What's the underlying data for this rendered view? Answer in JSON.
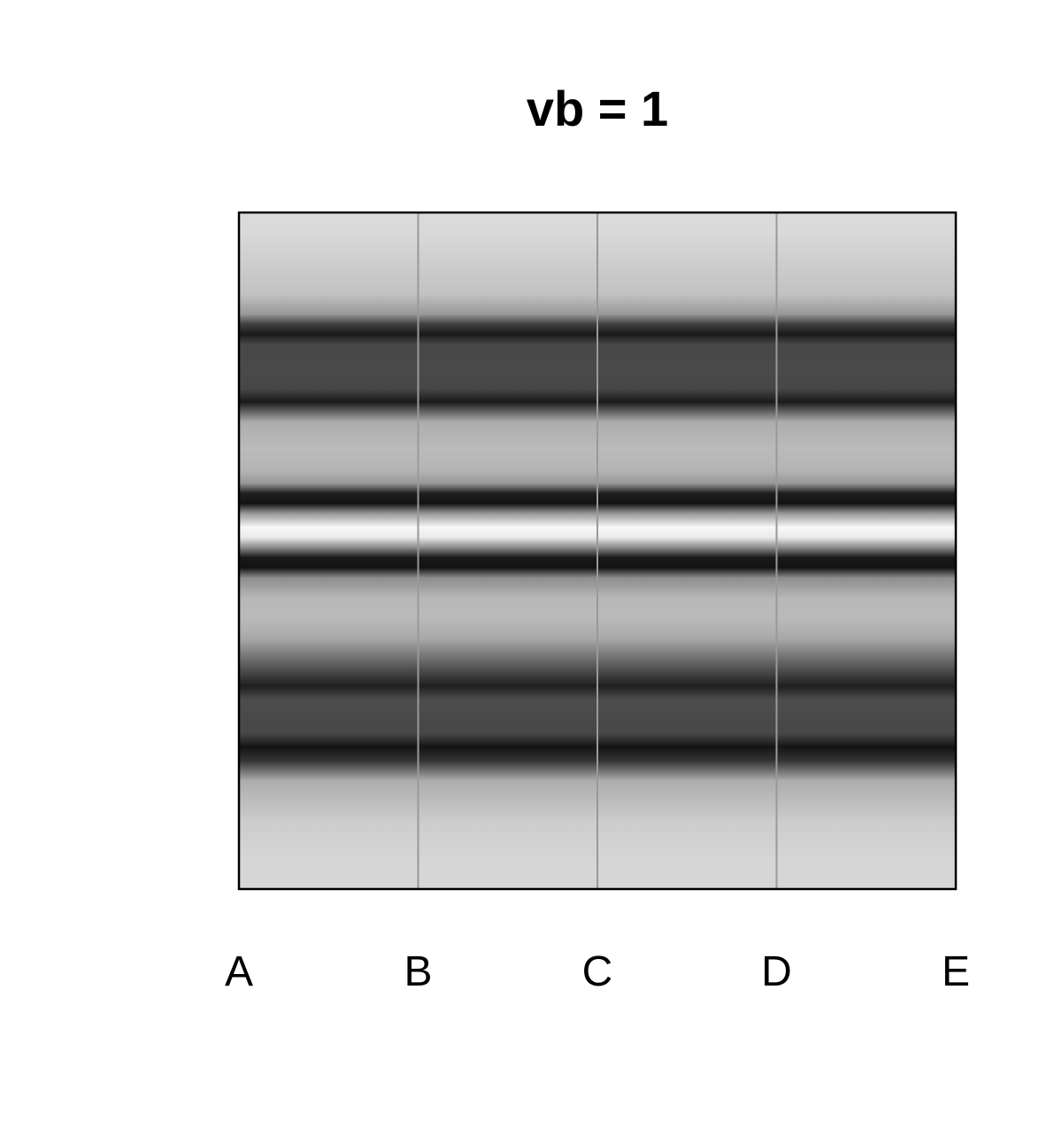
{
  "chart_data": {
    "type": "heatmap",
    "title": "vb = 1",
    "xlabel": "",
    "ylabel": "",
    "x_tick_labels": [
      "A",
      "B",
      "C",
      "D",
      "E"
    ],
    "panel_count": 4,
    "colormap": "grayscale",
    "background_color": "#ffffff",
    "frame_color": "#000000",
    "separator_color": "#999999",
    "grid": false,
    "legend": "none",
    "profile_gray": [
      [
        0.0,
        0.86
      ],
      [
        0.03,
        0.85
      ],
      [
        0.08,
        0.8
      ],
      [
        0.12,
        0.76
      ],
      [
        0.15,
        0.6
      ],
      [
        0.165,
        0.25
      ],
      [
        0.18,
        0.1
      ],
      [
        0.195,
        0.28
      ],
      [
        0.23,
        0.29
      ],
      [
        0.26,
        0.28
      ],
      [
        0.28,
        0.1
      ],
      [
        0.295,
        0.4
      ],
      [
        0.31,
        0.68
      ],
      [
        0.35,
        0.73
      ],
      [
        0.38,
        0.71
      ],
      [
        0.4,
        0.6
      ],
      [
        0.415,
        0.12
      ],
      [
        0.43,
        0.07
      ],
      [
        0.445,
        0.6
      ],
      [
        0.465,
        0.97
      ],
      [
        0.48,
        0.92
      ],
      [
        0.495,
        0.55
      ],
      [
        0.51,
        0.1
      ],
      [
        0.525,
        0.07
      ],
      [
        0.54,
        0.55
      ],
      [
        0.57,
        0.72
      ],
      [
        0.6,
        0.73
      ],
      [
        0.63,
        0.66
      ],
      [
        0.7,
        0.12
      ],
      [
        0.72,
        0.3
      ],
      [
        0.77,
        0.28
      ],
      [
        0.79,
        0.08
      ],
      [
        0.81,
        0.2
      ],
      [
        0.84,
        0.68
      ],
      [
        0.9,
        0.8
      ],
      [
        0.96,
        0.84
      ],
      [
        1.0,
        0.84
      ]
    ]
  }
}
